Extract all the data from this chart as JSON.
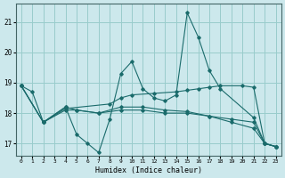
{
  "xlabel": "Humidex (Indice chaleur)",
  "background_color": "#cce8ec",
  "grid_color": "#99cccc",
  "line_color": "#1a6b6b",
  "xlim": [
    -0.5,
    23.5
  ],
  "ylim": [
    16.6,
    21.6
  ],
  "yticks": [
    17,
    18,
    19,
    20,
    21
  ],
  "xticks": [
    0,
    1,
    2,
    3,
    4,
    5,
    6,
    7,
    8,
    9,
    10,
    11,
    12,
    13,
    14,
    15,
    16,
    17,
    18,
    19,
    20,
    21,
    22,
    23
  ],
  "series": [
    {
      "x": [
        0,
        1,
        2,
        4,
        5,
        6,
        7,
        8,
        9,
        10,
        11,
        12,
        13,
        14,
        15,
        16,
        17,
        18,
        21,
        22,
        23
      ],
      "y": [
        18.9,
        18.7,
        17.7,
        18.2,
        17.3,
        17.0,
        16.7,
        17.8,
        19.3,
        19.7,
        18.8,
        18.5,
        18.4,
        18.6,
        21.3,
        20.5,
        19.4,
        18.8,
        17.85,
        17.0,
        16.9
      ]
    },
    {
      "x": [
        0,
        2,
        4,
        8,
        9,
        10,
        12,
        14,
        15,
        16,
        17,
        18,
        20,
        21,
        22,
        23
      ],
      "y": [
        18.9,
        17.7,
        18.15,
        18.3,
        18.5,
        18.6,
        18.65,
        18.7,
        18.75,
        18.8,
        18.85,
        18.9,
        18.9,
        18.85,
        17.0,
        16.9
      ]
    },
    {
      "x": [
        0,
        2,
        4,
        5,
        7,
        9,
        11,
        13,
        15,
        17,
        19,
        21,
        22,
        23
      ],
      "y": [
        18.9,
        17.7,
        18.1,
        18.1,
        18.0,
        18.1,
        18.1,
        18.0,
        18.0,
        17.9,
        17.8,
        17.7,
        17.0,
        16.9
      ]
    },
    {
      "x": [
        0,
        2,
        4,
        5,
        7,
        9,
        11,
        13,
        15,
        17,
        19,
        21,
        22,
        23
      ],
      "y": [
        18.9,
        17.7,
        18.2,
        18.1,
        18.0,
        18.2,
        18.2,
        18.1,
        18.05,
        17.9,
        17.7,
        17.5,
        17.0,
        16.9
      ]
    }
  ]
}
